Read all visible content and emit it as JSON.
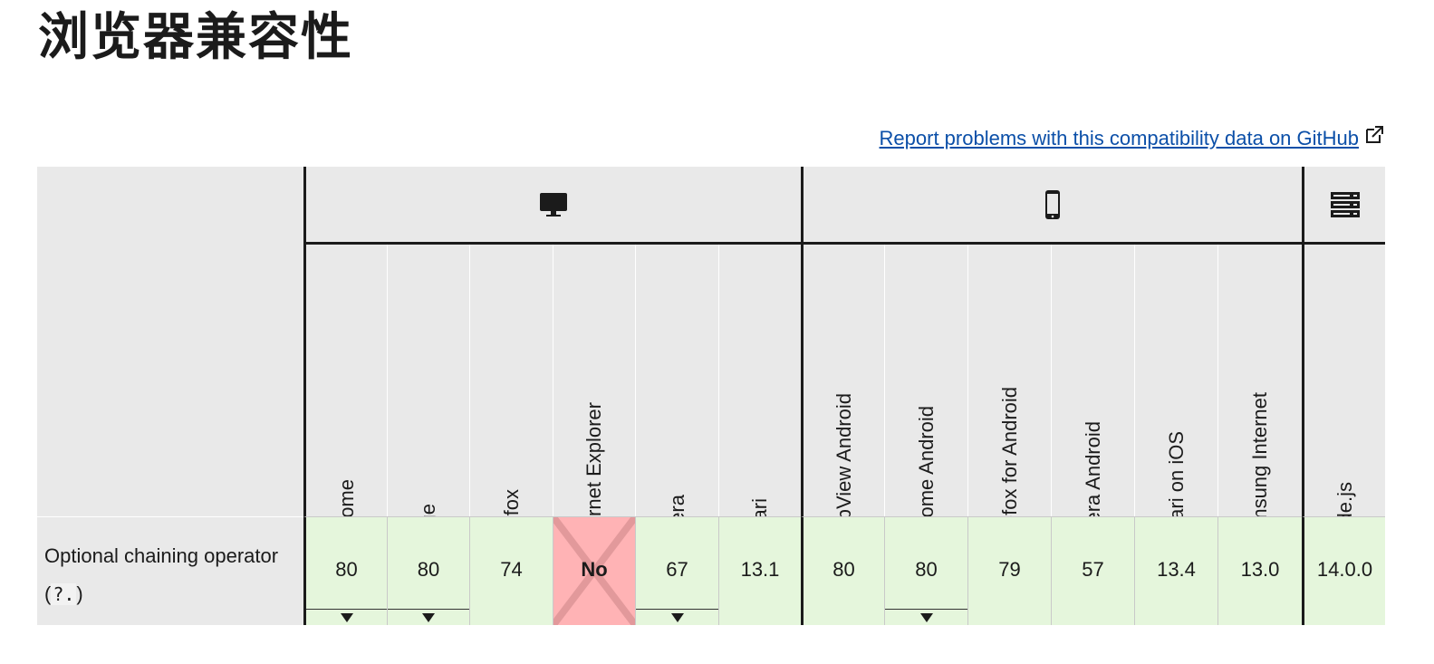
{
  "page": {
    "title": "浏览器兼容性",
    "report_link": "Report problems with this compatibility data on GitHub"
  },
  "platforms": [
    {
      "name": "desktop",
      "icon": "desktop-icon"
    },
    {
      "name": "mobile",
      "icon": "mobile-icon"
    },
    {
      "name": "server",
      "icon": "server-icon"
    }
  ],
  "browsers": [
    {
      "name": "Chrome",
      "icon": "chrome-icon",
      "version": "80",
      "toggle": true
    },
    {
      "name": "Edge",
      "icon": "edge-icon",
      "version": "80",
      "toggle": true
    },
    {
      "name": "Firefox",
      "icon": "firefox-icon",
      "version": "74",
      "toggle": false
    },
    {
      "name": "Internet Explorer",
      "icon": "internet-explorer-icon",
      "version": "No",
      "toggle": false,
      "supported": false
    },
    {
      "name": "Opera",
      "icon": "opera-icon",
      "version": "67",
      "toggle": true
    },
    {
      "name": "Safari",
      "icon": "safari-icon",
      "version": "13.1",
      "toggle": false
    },
    {
      "name": "WebView Android",
      "icon": "android-icon",
      "version": "80",
      "toggle": false
    },
    {
      "name": "Chrome Android",
      "icon": "chrome-icon",
      "version": "80",
      "toggle": true
    },
    {
      "name": "Firefox for Android",
      "icon": "firefox-icon",
      "version": "79",
      "toggle": false
    },
    {
      "name": "Opera Android",
      "icon": "opera-icon",
      "version": "57",
      "toggle": false
    },
    {
      "name": "Safari on iOS",
      "icon": "safari-icon",
      "version": "13.4",
      "toggle": false
    },
    {
      "name": "Samsung Internet",
      "icon": "samsung-internet-icon",
      "version": "13.0",
      "toggle": false
    },
    {
      "name": "Node.js",
      "icon": "nodejs-icon",
      "version": "14.0.0",
      "toggle": false
    }
  ],
  "feature": {
    "name": "Optional chaining operator (",
    "code": "?.",
    "suffix": ")"
  },
  "colors": {
    "supported": "#e5f6dc",
    "unsupported": "#ffb3b5",
    "header_bg": "#e9e9e9",
    "link": "#0b4fa8"
  }
}
